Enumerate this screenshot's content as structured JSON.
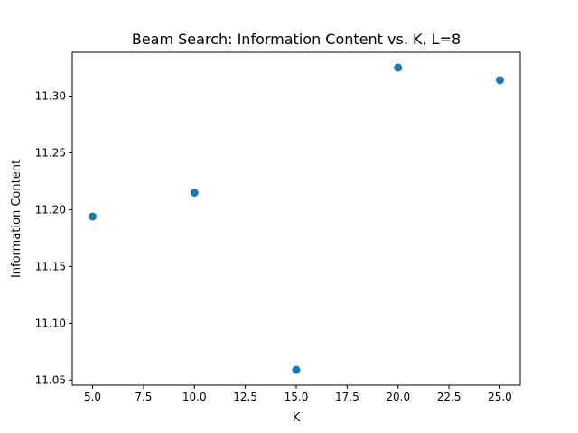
{
  "chart_data": {
    "type": "scatter",
    "title": "Beam Search: Information Content vs. K, L=8",
    "xlabel": "K",
    "ylabel": "Information Content",
    "x": [
      5,
      10,
      15,
      20,
      25
    ],
    "y": [
      11.194,
      11.215,
      11.059,
      11.325,
      11.314
    ],
    "xlim": [
      4.0,
      26.0
    ],
    "ylim": [
      11.0455,
      11.3385
    ],
    "xticks": [
      "5.0",
      "7.5",
      "10.0",
      "12.5",
      "15.0",
      "17.5",
      "20.0",
      "22.5",
      "25.0"
    ],
    "xtick_values": [
      5.0,
      7.5,
      10.0,
      12.5,
      15.0,
      17.5,
      20.0,
      22.5,
      25.0
    ],
    "yticks": [
      "11.05",
      "11.10",
      "11.15",
      "11.20",
      "11.25",
      "11.30"
    ],
    "ytick_values": [
      11.05,
      11.1,
      11.15,
      11.2,
      11.25,
      11.3
    ],
    "grid": false,
    "marker_color": "#1f77b4"
  }
}
